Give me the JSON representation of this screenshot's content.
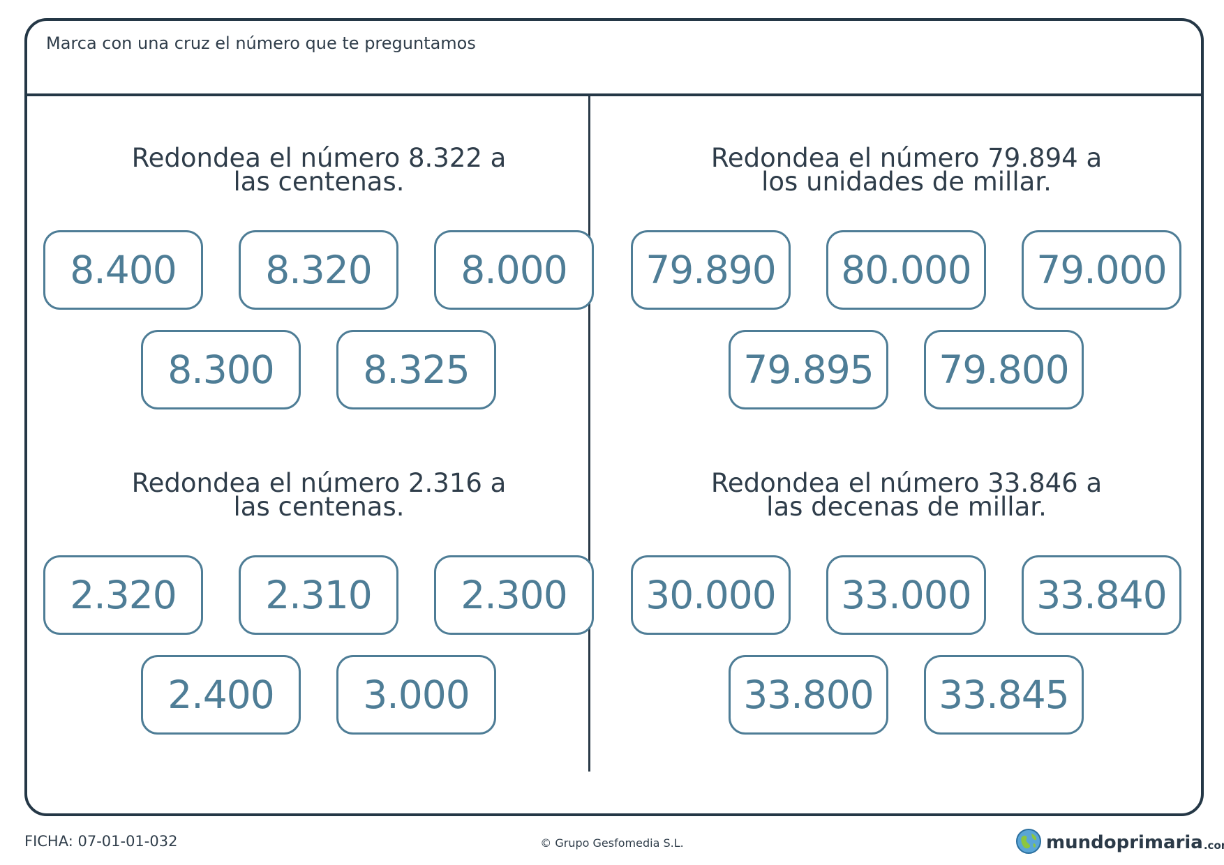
{
  "header": {
    "instruction": "Marca con una cruz el número que te preguntamos"
  },
  "exercises": [
    {
      "question_line1": "Redondea el número 8.322 a",
      "question_line2": "las centenas.",
      "options": [
        "8.400",
        "8.320",
        "8.000",
        "8.300",
        "8.325"
      ]
    },
    {
      "question_line1": "Redondea el número 79.894 a",
      "question_line2": "los unidades de millar.",
      "options": [
        "79.890",
        "80.000",
        "79.000",
        "79.895",
        "79.800"
      ]
    },
    {
      "question_line1": "Redondea el número 2.316 a",
      "question_line2": "las centenas.",
      "options": [
        "2.320",
        "2.310",
        "2.300",
        "2.400",
        "3.000"
      ]
    },
    {
      "question_line1": "Redondea el número 33.846 a",
      "question_line2": "las decenas de millar.",
      "options": [
        "30.000",
        "33.000",
        "33.840",
        "33.800",
        "33.845"
      ]
    }
  ],
  "footer": {
    "ficha": "FICHA: 07-01-01-032",
    "copyright": "© Grupo Gesfomedia S.L.",
    "logo_text": "mundoprimaria",
    "logo_suffix": ".com"
  },
  "colors": {
    "frame": "#243746",
    "option_accent": "#4e7d96",
    "text": "#2f3d4a"
  },
  "icons": {
    "logo": "globe-icon"
  }
}
